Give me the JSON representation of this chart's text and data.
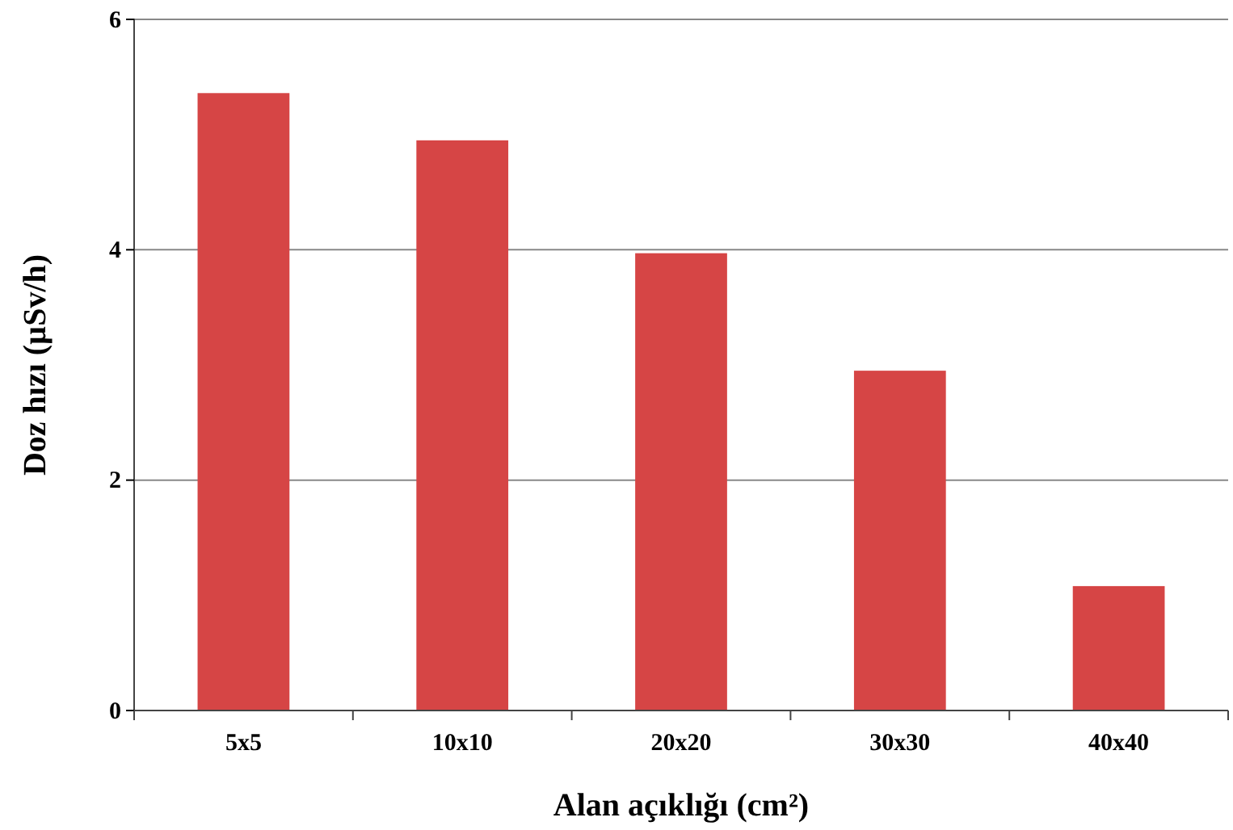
{
  "chart_data": {
    "type": "bar",
    "xlabel": "Alan açıklığı (cm²)",
    "ylabel": "Doz hızı (µSv/h)",
    "categories": [
      "5x5",
      "10x10",
      "20x20",
      "30x30",
      "40x40"
    ],
    "values": [
      5.36,
      4.95,
      3.97,
      2.95,
      1.08
    ],
    "color": "#d64545",
    "ylim": [
      0,
      6
    ],
    "yticks": [
      0,
      2,
      4,
      6
    ],
    "grid": "y"
  }
}
